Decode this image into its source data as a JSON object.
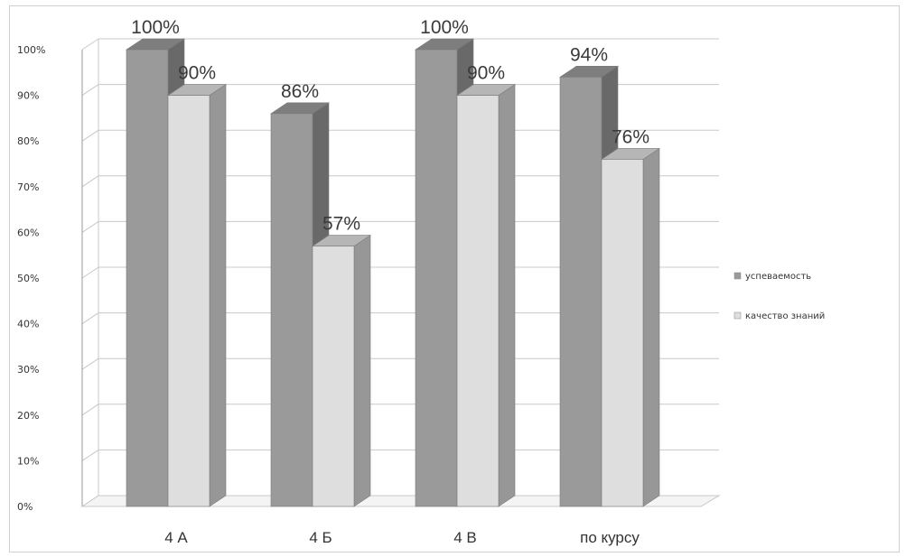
{
  "chart_data": {
    "type": "bar",
    "categories": [
      "4 А",
      "4 Б",
      "4 В",
      "по курсу"
    ],
    "series": [
      {
        "name": "успеваемость",
        "values": [
          100,
          86,
          100,
          94
        ],
        "labels": [
          "100%",
          "86%",
          "100%",
          "94%"
        ],
        "color": "#9a9a9a"
      },
      {
        "name": "качество  знаний",
        "values": [
          90,
          57,
          90,
          76
        ],
        "labels": [
          "90%",
          "57%",
          "90%",
          "76%"
        ],
        "color": "#dedede"
      }
    ],
    "y_ticks": [
      "0%",
      "10%",
      "20%",
      "30%",
      "40%",
      "50%",
      "60%",
      "70%",
      "80%",
      "90%",
      "100%"
    ],
    "ylim": [
      0,
      100
    ],
    "grid": true,
    "legend_position": "right",
    "style": "3d-clustered-column"
  }
}
